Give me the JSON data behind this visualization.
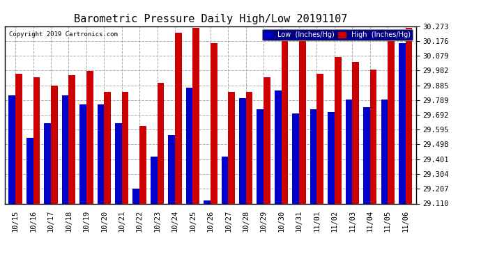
{
  "title": "Barometric Pressure Daily High/Low 20191107",
  "copyright": "Copyright 2019 Cartronics.com",
  "yticks": [
    29.11,
    29.207,
    29.304,
    29.401,
    29.498,
    29.595,
    29.692,
    29.789,
    29.885,
    29.982,
    30.079,
    30.176,
    30.273
  ],
  "ylim": [
    29.11,
    30.273
  ],
  "categories": [
    "10/15",
    "10/16",
    "10/17",
    "10/18",
    "10/19",
    "10/20",
    "10/21",
    "10/22",
    "10/23",
    "10/24",
    "10/25",
    "10/26",
    "10/27",
    "10/28",
    "10/29",
    "10/30",
    "10/31",
    "11/01",
    "11/02",
    "11/03",
    "11/04",
    "11/05",
    "11/06"
  ],
  "low_values": [
    29.82,
    29.54,
    29.635,
    29.82,
    29.76,
    29.76,
    29.635,
    29.207,
    29.42,
    29.56,
    29.87,
    29.13,
    29.42,
    29.8,
    29.73,
    29.85,
    29.7,
    29.73,
    29.71,
    29.79,
    29.74,
    29.79,
    30.16
  ],
  "high_values": [
    29.96,
    29.94,
    29.885,
    29.95,
    29.98,
    29.84,
    29.84,
    29.62,
    29.9,
    30.23,
    30.26,
    30.16,
    29.84,
    29.84,
    29.94,
    30.23,
    30.23,
    29.96,
    30.07,
    30.04,
    29.99,
    30.22,
    30.26
  ],
  "low_color": "#0000cc",
  "high_color": "#cc0000",
  "bg_color": "#ffffff",
  "grid_color": "#aaaaaa",
  "title_fontsize": 11,
  "tick_fontsize": 7.5,
  "bar_width": 0.38
}
